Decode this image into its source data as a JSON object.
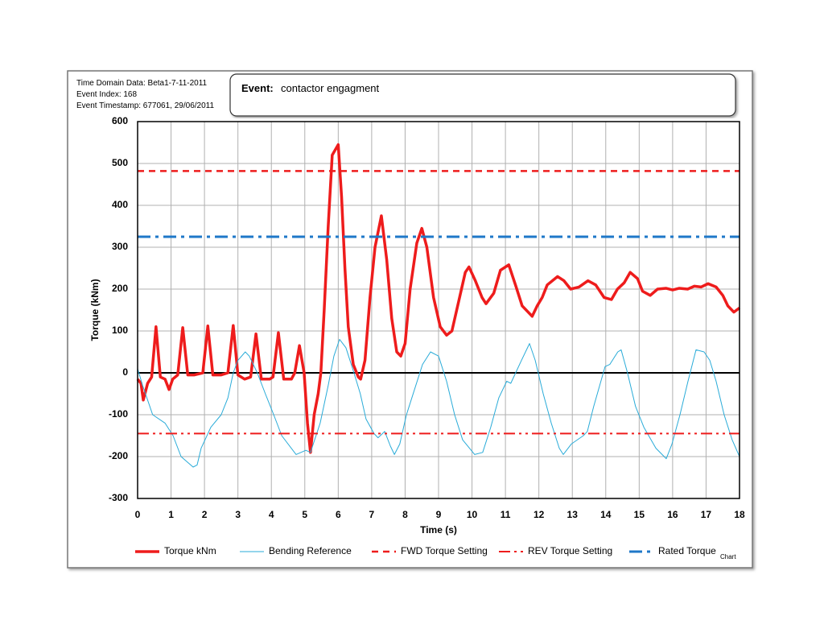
{
  "chart_data": {
    "type": "line",
    "header_lines": [
      "Time Domain Data: Beta1-7-11-2011",
      "Event Index: 168",
      "Event Timestamp: 677061, 29/06/2011"
    ],
    "event_label": "Event:",
    "event_text": "contactor engagment",
    "xlabel": "Time (s)",
    "ylabel": "Torque (kNm)",
    "footer_label": "Chart",
    "xlim": [
      0,
      18
    ],
    "xticks": [
      0,
      1,
      2,
      3,
      4,
      5,
      6,
      7,
      8,
      9,
      10,
      11,
      12,
      13,
      14,
      15,
      16,
      17,
      18
    ],
    "ylim": [
      -300,
      600
    ],
    "yticks": [
      -300,
      -200,
      -100,
      0,
      100,
      200,
      300,
      400,
      500,
      600
    ],
    "grid": true,
    "series": [
      {
        "name": "Torque kNm",
        "color": "#ee1c1c",
        "width": 3.5,
        "dash": "solid",
        "x": [
          0,
          0.1,
          0.17,
          0.3,
          0.42,
          0.55,
          0.68,
          0.82,
          0.94,
          1.05,
          1.2,
          1.35,
          1.5,
          1.7,
          1.95,
          2.1,
          2.25,
          2.5,
          2.7,
          2.86,
          3.0,
          3.2,
          3.38,
          3.54,
          3.7,
          3.95,
          4.05,
          4.21,
          4.37,
          4.6,
          4.7,
          4.84,
          4.98,
          5.08,
          5.17,
          5.28,
          5.4,
          5.48,
          5.58,
          5.7,
          5.82,
          6.0,
          6.1,
          6.2,
          6.3,
          6.45,
          6.6,
          6.67,
          6.8,
          6.95,
          7.1,
          7.29,
          7.45,
          7.6,
          7.75,
          7.87,
          8.0,
          8.15,
          8.35,
          8.5,
          8.65,
          8.85,
          9.05,
          9.24,
          9.4,
          9.6,
          9.8,
          9.91,
          10.1,
          10.3,
          10.42,
          10.65,
          10.85,
          11.1,
          11.3,
          11.5,
          11.8,
          11.95,
          12.1,
          12.25,
          12.56,
          12.75,
          12.95,
          13.2,
          13.47,
          13.7,
          13.95,
          14.17,
          14.35,
          14.55,
          14.73,
          14.95,
          15.1,
          15.33,
          15.55,
          15.8,
          16.0,
          16.2,
          16.45,
          16.65,
          16.85,
          17.06,
          17.3,
          17.5,
          17.65,
          17.83,
          18
        ],
        "values": [
          -15,
          -25,
          -65,
          -25,
          -10,
          110,
          -10,
          -15,
          -40,
          -15,
          -5,
          108,
          -5,
          -5,
          0,
          112,
          -5,
          -5,
          0,
          113,
          -5,
          -15,
          -10,
          93,
          -15,
          -15,
          -10,
          96,
          -15,
          -15,
          0,
          65,
          0,
          -120,
          -190,
          -100,
          -50,
          0,
          150,
          350,
          520,
          545,
          420,
          250,
          110,
          20,
          -10,
          -15,
          30,
          180,
          300,
          375,
          270,
          130,
          50,
          40,
          70,
          200,
          310,
          345,
          300,
          180,
          110,
          90,
          100,
          170,
          240,
          253,
          220,
          180,
          165,
          190,
          245,
          258,
          210,
          160,
          135,
          160,
          180,
          210,
          230,
          220,
          200,
          205,
          220,
          210,
          180,
          175,
          200,
          215,
          240,
          225,
          195,
          185,
          200,
          202,
          198,
          202,
          200,
          207,
          205,
          213,
          205,
          185,
          160,
          145,
          155
        ]
      },
      {
        "name": "Bending Reference",
        "color": "#29abd8",
        "width": 1,
        "dash": "solid",
        "x": [
          0,
          0.15,
          0.45,
          0.82,
          1.06,
          1.3,
          1.66,
          1.78,
          1.9,
          2.19,
          2.5,
          2.7,
          2.86,
          3.0,
          3.22,
          3.34,
          3.58,
          3.82,
          4.07,
          4.31,
          4.74,
          5.03,
          5.17,
          5.46,
          5.7,
          5.87,
          6.04,
          6.23,
          6.47,
          6.66,
          6.83,
          7.07,
          7.19,
          7.39,
          7.56,
          7.68,
          7.84,
          8.04,
          8.28,
          8.52,
          8.76,
          9.0,
          9.24,
          9.48,
          9.72,
          10.08,
          10.32,
          10.56,
          10.8,
          11.04,
          11.16,
          11.48,
          11.72,
          11.89,
          12.13,
          12.37,
          12.61,
          12.73,
          12.97,
          13.33,
          13.45,
          13.64,
          13.98,
          14.12,
          14.36,
          14.46,
          14.65,
          14.89,
          15.14,
          15.5,
          15.81,
          15.98,
          16.22,
          16.46,
          16.7,
          16.94,
          17.11,
          17.3,
          17.54,
          17.78,
          18
        ],
        "values": [
          10,
          -30,
          -100,
          -120,
          -150,
          -200,
          -225,
          -220,
          -180,
          -130,
          -100,
          -60,
          0,
          30,
          50,
          40,
          0,
          -50,
          -100,
          -150,
          -195,
          -185,
          -190,
          -120,
          -30,
          40,
          80,
          60,
          0,
          -50,
          -110,
          -145,
          -155,
          -140,
          -175,
          -195,
          -170,
          -100,
          -40,
          20,
          50,
          40,
          -20,
          -100,
          -160,
          -195,
          -190,
          -130,
          -60,
          -20,
          -25,
          30,
          70,
          30,
          -50,
          -120,
          -180,
          -195,
          -170,
          -150,
          -140,
          -80,
          15,
          20,
          50,
          55,
          0,
          -80,
          -130,
          -180,
          -205,
          -170,
          -100,
          -20,
          55,
          50,
          30,
          -20,
          -100,
          -160,
          -200
        ]
      },
      {
        "name": "FWD Torque Setting",
        "color": "#ee1c1c",
        "width": 2.5,
        "dash": "dash",
        "x": [
          0,
          18
        ],
        "values": [
          482,
          482
        ]
      },
      {
        "name": "REV Torque Setting",
        "color": "#ee1c1c",
        "width": 2,
        "dash": "dashdotdot",
        "x": [
          0,
          18
        ],
        "values": [
          -145,
          -145
        ]
      },
      {
        "name": "Rated Torque",
        "color": "#1f78c8",
        "width": 3,
        "dash": "dashdot",
        "x": [
          0,
          18
        ],
        "values": [
          325,
          325
        ]
      }
    ]
  }
}
